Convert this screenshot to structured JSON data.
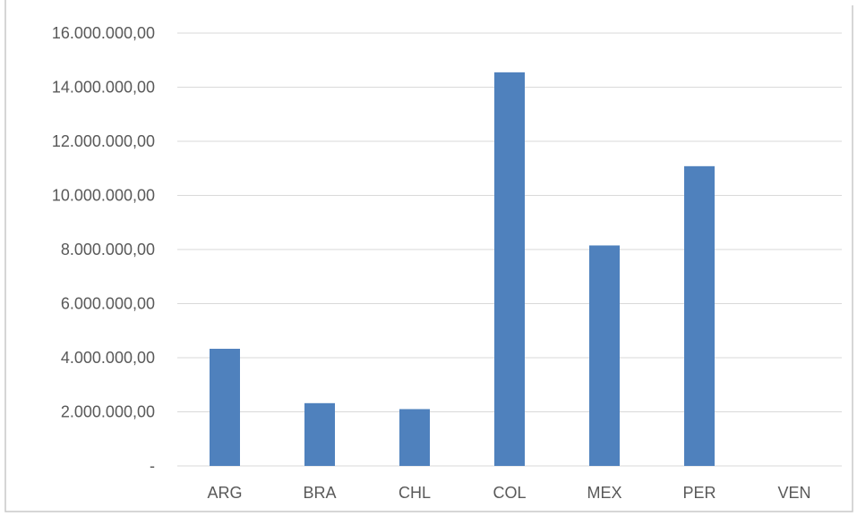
{
  "chart_data": {
    "type": "bar",
    "title": "",
    "xlabel": "",
    "ylabel": "",
    "categories": [
      "ARG",
      "BRA",
      "CHL",
      "COL",
      "MEX",
      "PER",
      "VEN"
    ],
    "series": [
      {
        "values": [
          4330000,
          2320000,
          2100000,
          14550000,
          8150000,
          11080000,
          0
        ],
        "color": "#4f81bd"
      }
    ],
    "ylim": [
      0,
      16000000
    ],
    "y_ticks": [
      0,
      2000000,
      4000000,
      6000000,
      8000000,
      10000000,
      12000000,
      14000000,
      16000000
    ],
    "y_tick_labels": [
      "-",
      "2.000.000,00",
      "4.000.000,00",
      "6.000.000,00",
      "8.000.000,00",
      "10.000.000,00",
      "12.000.000,00",
      "14.000.000,00",
      "16.000.000,00"
    ],
    "grid": true,
    "legend": "none",
    "gridline_color": "#d9d9d9",
    "text_color": "#595959",
    "frame_color": "#c8c8c8"
  }
}
